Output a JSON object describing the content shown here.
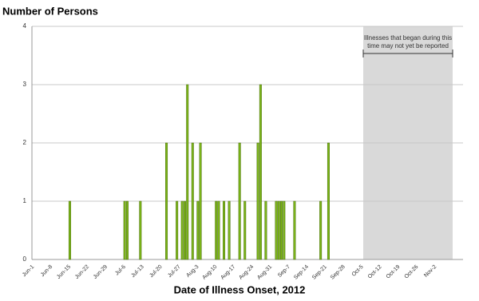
{
  "chart_data": {
    "type": "bar",
    "title": "Number of Persons",
    "x_label": "Date of Illness Onset, 2012",
    "annotation": [
      "Illnesses that began during this",
      "time may not yet be reported"
    ],
    "color": "#7cb518",
    "grid": true,
    "ylim": [
      0,
      4
    ],
    "yticks": [
      0,
      1,
      2,
      3,
      4
    ],
    "categories": [
      "Jun-1",
      null,
      null,
      null,
      null,
      null,
      null,
      "Jun-8",
      null,
      null,
      null,
      null,
      null,
      null,
      "Jun-15",
      null,
      null,
      null,
      null,
      null,
      null,
      "Jun-22",
      null,
      null,
      null,
      null,
      null,
      null,
      "Jun-29",
      null,
      null,
      null,
      null,
      null,
      null,
      "Jul-6",
      null,
      null,
      null,
      null,
      null,
      null,
      "Jul-13",
      null,
      null,
      null,
      null,
      null,
      null,
      "Jul-20",
      null,
      null,
      null,
      null,
      null,
      null,
      "Jul-27",
      null,
      null,
      null,
      null,
      null,
      null,
      "Aug-3",
      null,
      null,
      null,
      null,
      null,
      null,
      "Aug-10",
      null,
      null,
      null,
      null,
      null,
      null,
      "Aug-17",
      null,
      null,
      null,
      null,
      null,
      null,
      "Aug-24",
      null,
      null,
      null,
      null,
      null,
      null,
      "Aug-31",
      null,
      null,
      null,
      null,
      null,
      null,
      "Sep-7",
      null,
      null,
      null,
      null,
      null,
      null,
      "Sep-14",
      null,
      null,
      null,
      null,
      null,
      null,
      "Sep-21",
      null,
      null,
      null,
      null,
      null,
      null,
      "Sep-28",
      null,
      null,
      null,
      null,
      null,
      null,
      "Oct-5",
      null,
      null,
      null,
      null,
      null,
      null,
      "Oct-12",
      null,
      null,
      null,
      null,
      null,
      null,
      "Oct-19",
      null,
      null,
      null,
      null,
      null,
      null,
      "Oct-26",
      null,
      null,
      null,
      null,
      null,
      null,
      "Nov-2",
      null,
      null,
      null,
      null,
      null,
      null,
      null,
      null,
      null,
      null
    ],
    "values": [
      0,
      0,
      0,
      0,
      0,
      0,
      0,
      0,
      0,
      0,
      0,
      0,
      0,
      0,
      1,
      0,
      0,
      0,
      0,
      0,
      0,
      0,
      0,
      0,
      0,
      0,
      0,
      0,
      0,
      0,
      0,
      0,
      0,
      0,
      0,
      1,
      1,
      0,
      0,
      0,
      0,
      1,
      0,
      0,
      0,
      0,
      0,
      0,
      0,
      0,
      0,
      2,
      0,
      0,
      0,
      1,
      0,
      1,
      1,
      3,
      0,
      2,
      0,
      1,
      2,
      0,
      0,
      0,
      0,
      0,
      1,
      1,
      0,
      1,
      0,
      1,
      0,
      0,
      0,
      2,
      0,
      1,
      0,
      0,
      0,
      0,
      2,
      3,
      0,
      1,
      0,
      0,
      0,
      1,
      1,
      1,
      1,
      0,
      0,
      0,
      1,
      0,
      0,
      0,
      0,
      0,
      0,
      0,
      0,
      0,
      1,
      0,
      0,
      2,
      0,
      0,
      0,
      0,
      0,
      0,
      0,
      0,
      0,
      0,
      0,
      0,
      0,
      0,
      0,
      0,
      0,
      0,
      0,
      0,
      0,
      0,
      0,
      0,
      0,
      0,
      0,
      0,
      0,
      0,
      0,
      0,
      0,
      0,
      0,
      0,
      0,
      0,
      0,
      0,
      0,
      0,
      0,
      0,
      0,
      0,
      0,
      0,
      0,
      0,
      0
    ]
  }
}
